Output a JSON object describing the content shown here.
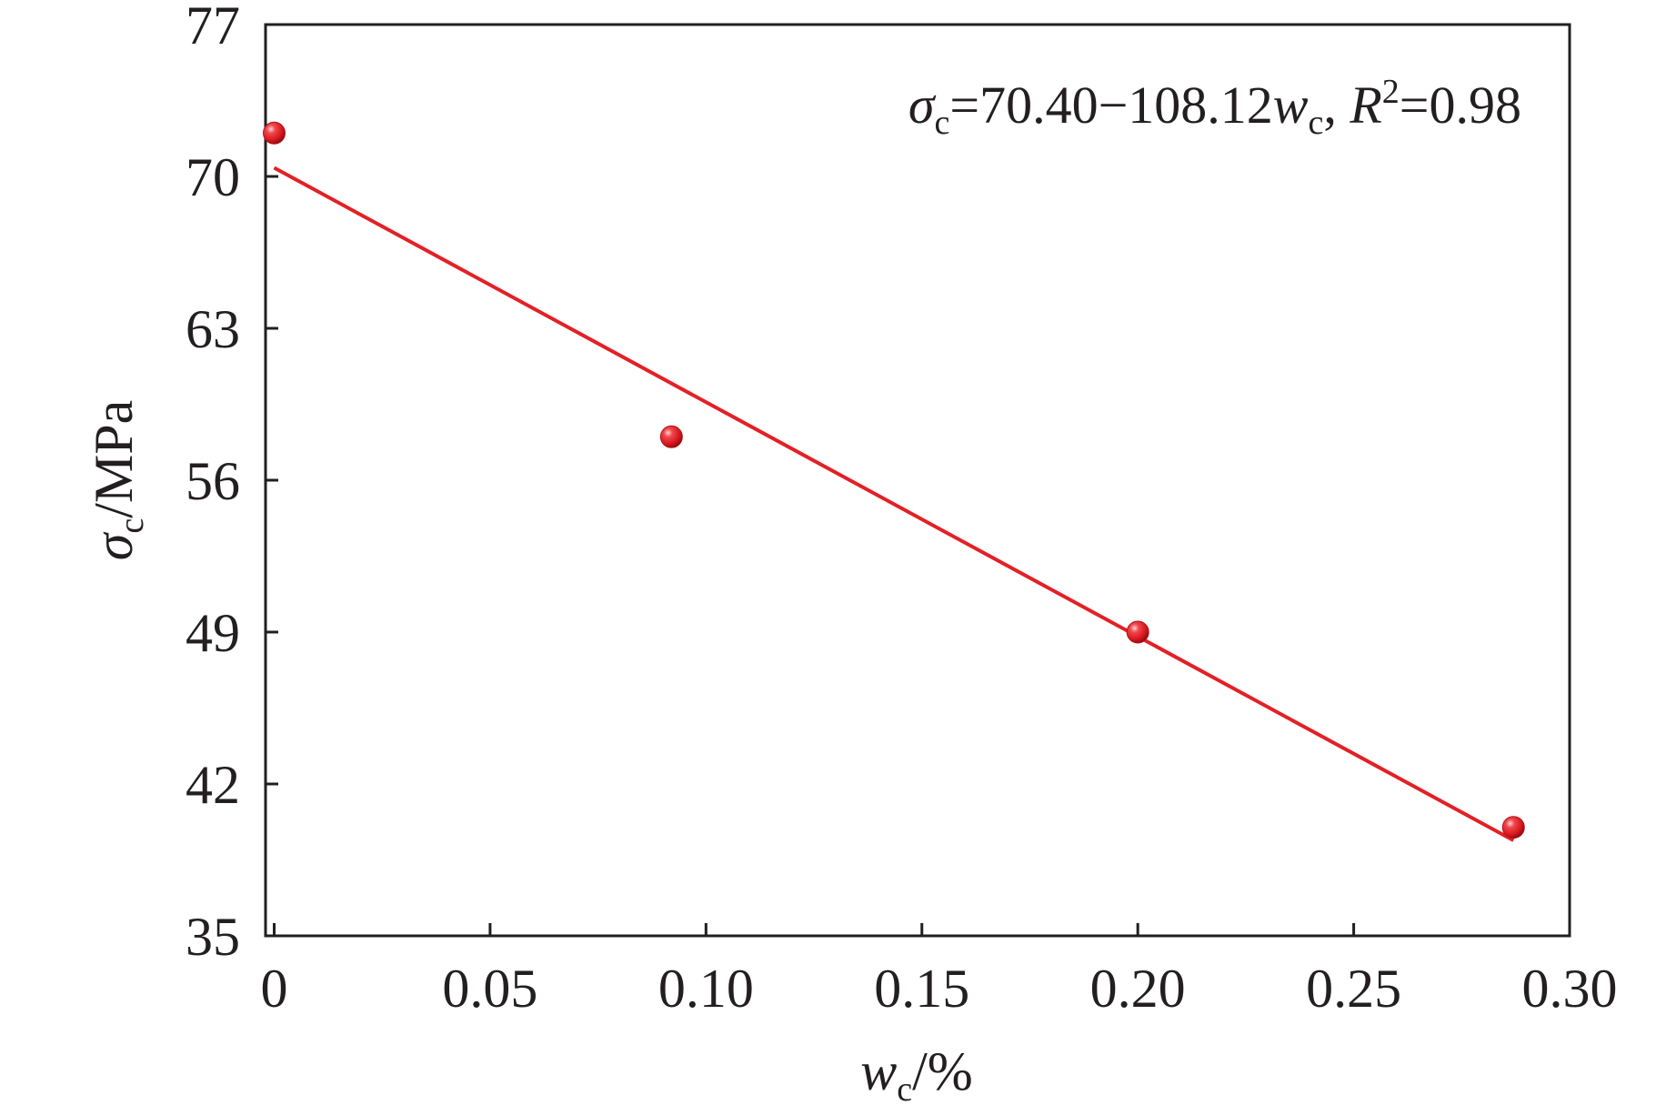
{
  "chart_data": {
    "type": "scatter",
    "x": [
      0.0,
      0.092,
      0.2,
      0.287
    ],
    "y": [
      72.0,
      58.0,
      49.0,
      40.0
    ],
    "xlim": [
      -0.002,
      0.3
    ],
    "ylim": [
      35,
      77
    ],
    "xticks": [
      0,
      0.05,
      0.1,
      0.15,
      0.2,
      0.25,
      0.3
    ],
    "xtick_labels": [
      "0",
      "0.05",
      "0.10",
      "0.15",
      "0.20",
      "0.25",
      "0.30"
    ],
    "yticks": [
      35,
      42,
      49,
      56,
      63,
      70,
      77
    ],
    "ytick_labels": [
      "35",
      "42",
      "49",
      "56",
      "63",
      "70",
      "77"
    ],
    "xlabel": {
      "main": "w",
      "sub": "c",
      "rest": "/%"
    },
    "ylabel": {
      "main": "σ",
      "sub": "c",
      "rest": "/MPa"
    },
    "fit_line": {
      "x": [
        0.0,
        0.287
      ],
      "y": [
        70.4,
        39.4
      ],
      "intercept": 70.4,
      "slope": -108.12
    },
    "equation": {
      "sigma": "σ",
      "sigma_sub": "c",
      "lhs_rest": "=70.40−108.12",
      "w": "w",
      "w_sub": "c",
      "sep": ", ",
      "R": "R",
      "R_sup": "2",
      "r2_rest": "=0.98"
    },
    "grid": false,
    "legend": "none",
    "colors": {
      "series": "#e32026",
      "axis": "#231f20"
    }
  }
}
